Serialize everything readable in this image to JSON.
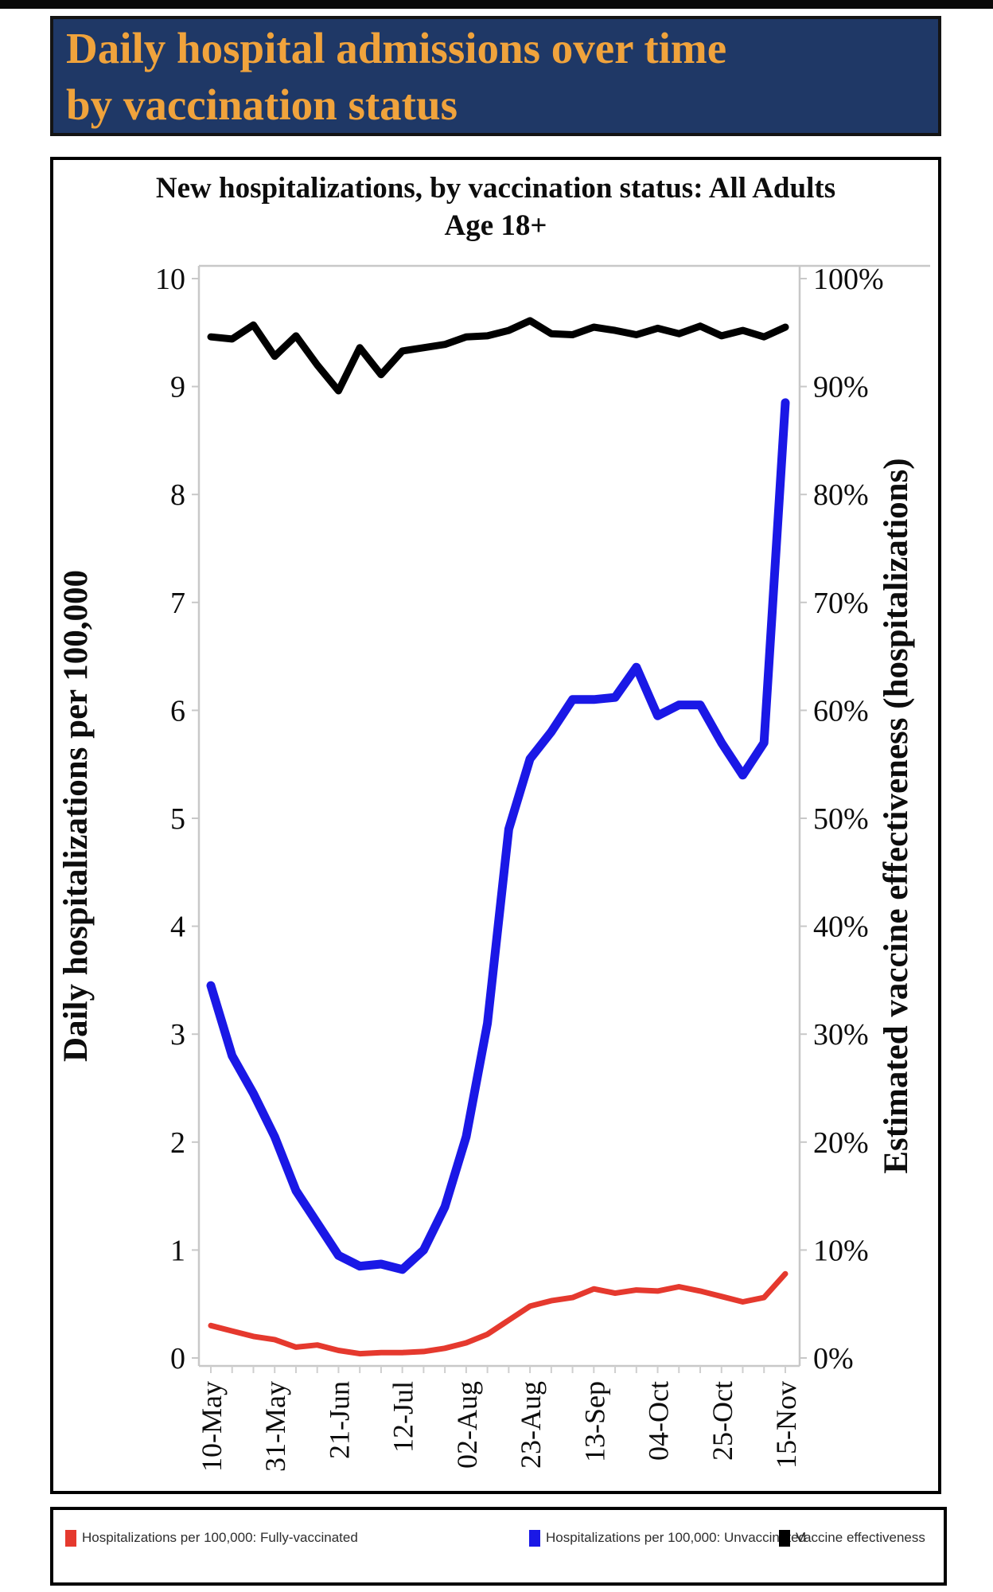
{
  "header": {
    "title_line1": "Daily hospital admissions over time",
    "title_line2": "by vaccination status",
    "bg_color": "#1f3866",
    "text_color": "#f0a33c"
  },
  "chart_data": {
    "type": "line",
    "title_line1": "New hospitalizations, by vaccination status: All Adults",
    "title_line2": "Age 18+",
    "x": [
      "10-May",
      "17-May",
      "24-May",
      "31-May",
      "07-Jun",
      "14-Jun",
      "21-Jun",
      "28-Jun",
      "05-Jul",
      "12-Jul",
      "19-Jul",
      "26-Jul",
      "02-Aug",
      "09-Aug",
      "16-Aug",
      "23-Aug",
      "30-Aug",
      "06-Sep",
      "13-Sep",
      "20-Sep",
      "27-Sep",
      "04-Oct",
      "11-Oct",
      "18-Oct",
      "25-Oct",
      "01-Nov",
      "08-Nov",
      "15-Nov"
    ],
    "x_tick_labels": [
      "10-May",
      "31-May",
      "21-Jun",
      "12-Jul",
      "02-Aug",
      "23-Aug",
      "13-Sep",
      "04-Oct",
      "25-Oct",
      "15-Nov"
    ],
    "left_axis": {
      "label": "Daily hospitalizations per 100,000",
      "min": 0,
      "max": 10,
      "ticks": [
        "0",
        "1",
        "2",
        "3",
        "4",
        "5",
        "6",
        "7",
        "8",
        "9",
        "10"
      ]
    },
    "right_axis": {
      "label": "Estimated vaccine effectiveness (hospitalizations)",
      "min": "0%",
      "max": "100%",
      "ticks": [
        "0%",
        "10%",
        "20%",
        "30%",
        "40%",
        "50%",
        "60%",
        "70%",
        "80%",
        "90%",
        "100%"
      ]
    },
    "grid": false,
    "legend_position": "bottom",
    "series": [
      {
        "name": "Hospitalizations per 100,000: Fully-vaccinated",
        "color": "#e5392e",
        "axis": "left",
        "line_width": 7,
        "values": [
          0.3,
          0.25,
          0.2,
          0.17,
          0.1,
          0.12,
          0.07,
          0.04,
          0.05,
          0.05,
          0.06,
          0.09,
          0.14,
          0.22,
          0.35,
          0.48,
          0.53,
          0.56,
          0.64,
          0.6,
          0.63,
          0.62,
          0.66,
          0.62,
          0.57,
          0.52,
          0.56,
          0.78
        ]
      },
      {
        "name": "Hospitalizations per 100,000: Unvaccinated",
        "color": "#1a18e6",
        "axis": "left",
        "line_width": 11,
        "values": [
          3.45,
          2.8,
          2.45,
          2.05,
          1.55,
          1.25,
          0.95,
          0.85,
          0.87,
          0.82,
          1.0,
          1.4,
          2.05,
          3.1,
          4.9,
          5.55,
          5.8,
          6.1,
          6.1,
          6.12,
          6.4,
          5.95,
          6.05,
          6.05,
          5.7,
          5.4,
          5.7,
          8.85
        ]
      },
      {
        "name": "Vaccine effectiveness",
        "color": "#000000",
        "axis": "right",
        "line_width": 9,
        "values_pct": [
          94.6,
          94.4,
          95.7,
          92.8,
          94.7,
          92.0,
          89.6,
          93.6,
          91.1,
          93.3,
          93.6,
          93.9,
          94.6,
          94.7,
          95.2,
          96.1,
          94.9,
          94.8,
          95.5,
          95.2,
          94.8,
          95.4,
          94.9,
          95.6,
          94.7,
          95.2,
          94.6,
          95.5
        ]
      }
    ]
  }
}
